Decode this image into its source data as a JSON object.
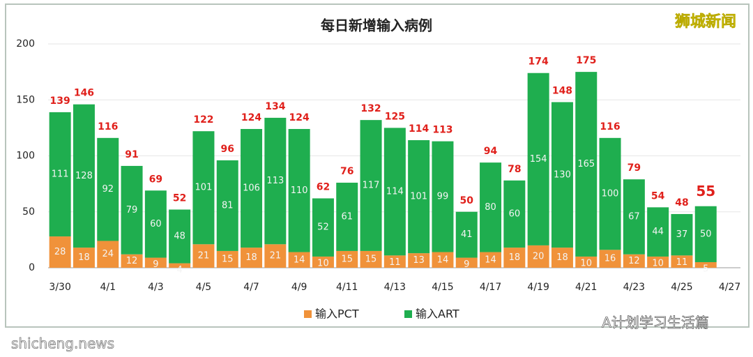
{
  "chart_data": {
    "type": "stacked_bar",
    "title": "每日新增输入病例",
    "categories": [
      "3/30",
      null,
      "4/1",
      null,
      "4/3",
      null,
      "4/5",
      null,
      "4/7",
      null,
      "4/9",
      null,
      "4/11",
      null,
      "4/13",
      null,
      "4/15",
      null,
      "4/17",
      null,
      "4/19",
      null,
      "4/21",
      null,
      "4/23",
      null,
      "4/25",
      null,
      "4/27"
    ],
    "series": [
      {
        "name": "输入PCT",
        "color": "#f0923a",
        "values": [
          28,
          18,
          24,
          12,
          9,
          4,
          21,
          15,
          18,
          21,
          14,
          10,
          15,
          15,
          11,
          13,
          14,
          9,
          14,
          18,
          20,
          18,
          10,
          16,
          12,
          10,
          11,
          5,
          null
        ]
      },
      {
        "name": "输入ART",
        "color": "#1fae4f",
        "values": [
          111,
          128,
          92,
          79,
          60,
          48,
          101,
          81,
          106,
          113,
          110,
          52,
          61,
          117,
          114,
          101,
          99,
          41,
          80,
          60,
          154,
          130,
          165,
          100,
          67,
          44,
          37,
          50,
          null
        ]
      }
    ],
    "totals": [
      139,
      146,
      116,
      91,
      69,
      52,
      122,
      96,
      124,
      134,
      124,
      62,
      76,
      132,
      125,
      114,
      113,
      50,
      94,
      78,
      174,
      148,
      175,
      116,
      79,
      54,
      48,
      55,
      null
    ],
    "ylim": [
      0,
      200
    ],
    "yticks": [
      0,
      50,
      100,
      150,
      200
    ],
    "grid": true,
    "legend": "bottom",
    "watermarks": [
      "狮城新闻",
      "A计划学习生活篇",
      "shicheng.news"
    ]
  }
}
